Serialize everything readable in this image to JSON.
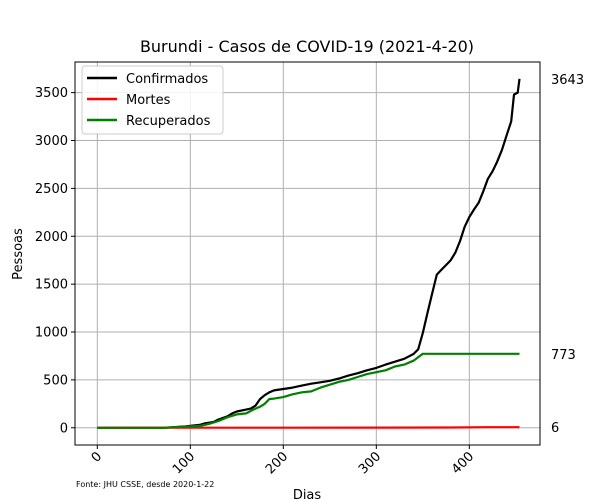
{
  "chart_data": {
    "type": "line",
    "title": "Burundi - Casos de COVID-19 (2021-4-20)",
    "xlabel": "Dias",
    "ylabel": "Pessoas",
    "xlim": [
      -24,
      476
    ],
    "ylim": [
      -180,
      3820
    ],
    "xticks": [
      0,
      100,
      200,
      300,
      400
    ],
    "yticks": [
      0,
      500,
      1000,
      1500,
      2000,
      2500,
      3000,
      3500
    ],
    "grid": true,
    "legend_position": "top-left",
    "source": "Fonte: JHU CSSE, desde 2020-1-22",
    "series": [
      {
        "name": "Confirmados",
        "color": "#000000",
        "end_label": "3643",
        "points": [
          [
            0,
            0
          ],
          [
            70,
            0
          ],
          [
            80,
            5
          ],
          [
            95,
            15
          ],
          [
            110,
            30
          ],
          [
            115,
            45
          ],
          [
            125,
            60
          ],
          [
            130,
            85
          ],
          [
            140,
            120
          ],
          [
            145,
            150
          ],
          [
            150,
            170
          ],
          [
            160,
            190
          ],
          [
            165,
            200
          ],
          [
            170,
            230
          ],
          [
            175,
            300
          ],
          [
            180,
            340
          ],
          [
            185,
            370
          ],
          [
            190,
            390
          ],
          [
            200,
            405
          ],
          [
            210,
            420
          ],
          [
            220,
            440
          ],
          [
            230,
            460
          ],
          [
            240,
            475
          ],
          [
            250,
            490
          ],
          [
            260,
            515
          ],
          [
            270,
            545
          ],
          [
            280,
            570
          ],
          [
            290,
            600
          ],
          [
            300,
            625
          ],
          [
            310,
            660
          ],
          [
            320,
            690
          ],
          [
            330,
            720
          ],
          [
            340,
            770
          ],
          [
            345,
            820
          ],
          [
            350,
            990
          ],
          [
            355,
            1200
          ],
          [
            360,
            1400
          ],
          [
            365,
            1600
          ],
          [
            370,
            1650
          ],
          [
            375,
            1700
          ],
          [
            380,
            1750
          ],
          [
            385,
            1830
          ],
          [
            390,
            1950
          ],
          [
            395,
            2100
          ],
          [
            400,
            2200
          ],
          [
            405,
            2280
          ],
          [
            410,
            2350
          ],
          [
            415,
            2470
          ],
          [
            420,
            2600
          ],
          [
            425,
            2680
          ],
          [
            430,
            2780
          ],
          [
            435,
            2900
          ],
          [
            440,
            3050
          ],
          [
            445,
            3200
          ],
          [
            448,
            3480
          ],
          [
            452,
            3500
          ],
          [
            454,
            3643
          ]
        ]
      },
      {
        "name": "Mortes",
        "color": "#ff0000",
        "end_label": "6",
        "points": [
          [
            0,
            0
          ],
          [
            100,
            1
          ],
          [
            200,
            1
          ],
          [
            300,
            2
          ],
          [
            380,
            3
          ],
          [
            420,
            6
          ],
          [
            454,
            6
          ]
        ]
      },
      {
        "name": "Recuperados",
        "color": "#008000",
        "end_label": "773",
        "points": [
          [
            0,
            0
          ],
          [
            70,
            0
          ],
          [
            90,
            10
          ],
          [
            110,
            20
          ],
          [
            120,
            40
          ],
          [
            130,
            70
          ],
          [
            140,
            110
          ],
          [
            150,
            140
          ],
          [
            160,
            150
          ],
          [
            170,
            200
          ],
          [
            175,
            220
          ],
          [
            180,
            250
          ],
          [
            185,
            300
          ],
          [
            190,
            305
          ],
          [
            200,
            320
          ],
          [
            210,
            350
          ],
          [
            220,
            370
          ],
          [
            230,
            380
          ],
          [
            240,
            420
          ],
          [
            250,
            450
          ],
          [
            260,
            480
          ],
          [
            270,
            500
          ],
          [
            280,
            530
          ],
          [
            290,
            560
          ],
          [
            300,
            580
          ],
          [
            310,
            600
          ],
          [
            320,
            640
          ],
          [
            330,
            660
          ],
          [
            340,
            700
          ],
          [
            350,
            773
          ],
          [
            400,
            773
          ],
          [
            454,
            773
          ]
        ]
      }
    ]
  }
}
